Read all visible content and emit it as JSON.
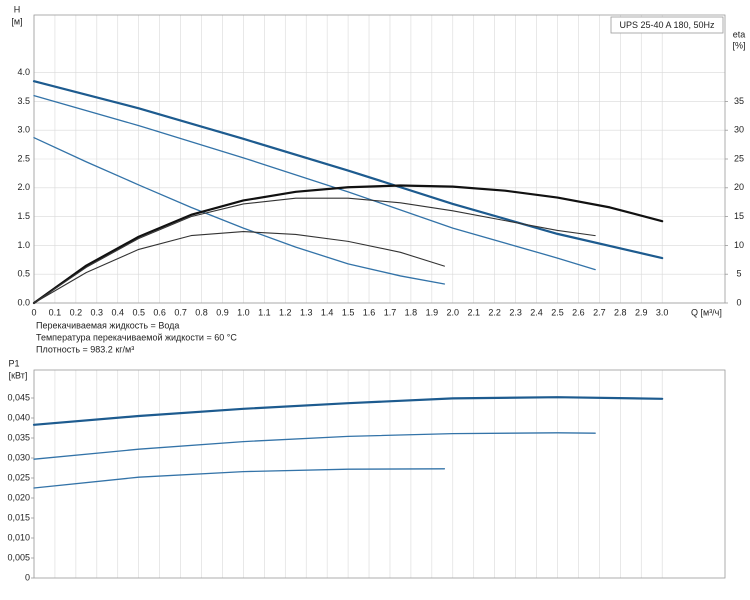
{
  "chart_data": [
    {
      "type": "line",
      "title": "UPS 25-40 A 180, 50Hz",
      "y_label": "H",
      "y_unit": "[м]",
      "y2_label": "eta",
      "y2_unit": "[%]",
      "x_label": "Q [м³/ч]",
      "xlim": [
        0,
        3.3
      ],
      "xticks": [
        0,
        0.1,
        0.2,
        0.3,
        0.4,
        0.5,
        0.6,
        0.7,
        0.8,
        0.9,
        {
          "value": 1,
          "label": "1.0"
        },
        1.1,
        1.2,
        1.3,
        1.4,
        1.5,
        1.6,
        1.7,
        1.8,
        1.9,
        {
          "value": 2,
          "label": "2.0"
        },
        2.1,
        2.2,
        2.3,
        2.4,
        2.5,
        2.6,
        2.7,
        2.8,
        2.9,
        {
          "value": 3,
          "label": "3.0"
        }
      ],
      "ylim": [
        0,
        5
      ],
      "yticks": [
        {
          "value": 0,
          "label": "0.0"
        },
        0.5,
        {
          "value": 1,
          "label": "1.0"
        },
        1.5,
        {
          "value": 2,
          "label": "2.0"
        },
        2.5,
        {
          "value": 3,
          "label": "3.0"
        },
        3.5,
        {
          "value": 4,
          "label": "4.0"
        }
      ],
      "y2lim": [
        0,
        50
      ],
      "y2ticks": [
        0,
        5,
        10,
        15,
        20,
        25,
        30,
        35
      ],
      "grid": true,
      "series": [
        {
          "color": "#1d5b8f",
          "width": 2.2,
          "x": [
            0,
            0.5,
            1,
            1.5,
            2,
            2.5,
            3
          ],
          "values": [
            3.85,
            3.38,
            2.85,
            2.3,
            1.72,
            1.2,
            0.78
          ]
        },
        {
          "color": "#3373a8",
          "width": 1.3,
          "x": [
            0,
            0.5,
            1,
            1.5,
            2,
            2.5,
            2.68
          ],
          "values": [
            3.6,
            3.08,
            2.52,
            1.93,
            1.3,
            0.78,
            0.58
          ]
        },
        {
          "color": "#3373a8",
          "width": 1.3,
          "x": [
            0,
            0.25,
            0.5,
            0.75,
            1,
            1.25,
            1.5,
            1.75,
            1.96
          ],
          "values": [
            2.87,
            2.45,
            2.05,
            1.66,
            1.3,
            0.97,
            0.68,
            0.47,
            0.33
          ]
        },
        {
          "color": "#111111",
          "width": 2.2,
          "axis": "y2",
          "x": [
            0,
            0.25,
            0.5,
            0.75,
            1,
            1.25,
            1.5,
            1.75,
            2,
            2.25,
            2.5,
            2.75,
            3
          ],
          "values": [
            0,
            6.5,
            11.5,
            15.3,
            17.8,
            19.3,
            20.1,
            20.4,
            20.2,
            19.5,
            18.3,
            16.6,
            14.2
          ]
        },
        {
          "color": "#333333",
          "width": 1.1,
          "axis": "y2",
          "x": [
            0,
            0.25,
            0.5,
            0.75,
            1,
            1.25,
            1.5,
            1.75,
            2,
            2.25,
            2.5,
            2.68
          ],
          "values": [
            0,
            6.2,
            11.2,
            15,
            17.2,
            18.2,
            18.2,
            17.4,
            16,
            14.3,
            12.6,
            11.7
          ]
        },
        {
          "color": "#333333",
          "width": 1.1,
          "axis": "y2",
          "x": [
            0,
            0.25,
            0.5,
            0.75,
            1,
            1.25,
            1.5,
            1.75,
            1.96
          ],
          "values": [
            0,
            5.3,
            9.3,
            11.7,
            12.4,
            11.9,
            10.7,
            8.8,
            6.4
          ]
        }
      ],
      "notes": [
        "Перекачиваемая жидкость = Вода",
        "Температура перекачиваемой жидкости = 60 °C",
        "Плотность = 983.2 кг/м³"
      ]
    },
    {
      "type": "line",
      "y_label": "P1",
      "y_unit": "[кВт]",
      "ylim": [
        0,
        0.052
      ],
      "yticks": [
        0,
        {
          "value": 0.005,
          "label": "0,005"
        },
        {
          "value": 0.01,
          "label": "0,010"
        },
        {
          "value": 0.015,
          "label": "0,015"
        },
        {
          "value": 0.02,
          "label": "0,020"
        },
        {
          "value": 0.025,
          "label": "0,025"
        },
        {
          "value": 0.03,
          "label": "0,030"
        },
        {
          "value": 0.035,
          "label": "0,035"
        },
        {
          "value": 0.04,
          "label": "0,040"
        },
        {
          "value": 0.045,
          "label": "0,045"
        }
      ],
      "grid": "x",
      "series": [
        {
          "color": "#1d5b8f",
          "width": 2.2,
          "x": [
            0,
            0.5,
            1,
            1.5,
            2,
            2.5,
            3
          ],
          "values": [
            0.0383,
            0.0405,
            0.0423,
            0.0437,
            0.0449,
            0.0452,
            0.0448
          ]
        },
        {
          "color": "#3373a8",
          "width": 1.3,
          "x": [
            0,
            0.5,
            1,
            1.5,
            2,
            2.5,
            2.68
          ],
          "values": [
            0.0297,
            0.0322,
            0.0341,
            0.0354,
            0.0361,
            0.0363,
            0.0362
          ]
        },
        {
          "color": "#3373a8",
          "width": 1.3,
          "x": [
            0,
            0.5,
            1,
            1.5,
            1.96
          ],
          "values": [
            0.0225,
            0.0252,
            0.0266,
            0.0272,
            0.0273
          ]
        }
      ]
    }
  ]
}
